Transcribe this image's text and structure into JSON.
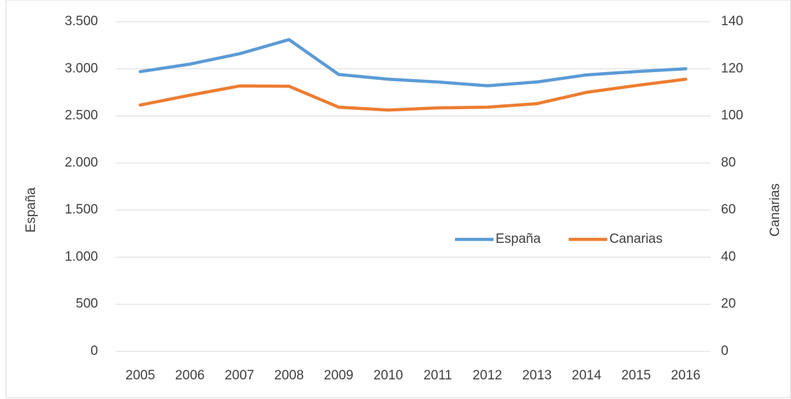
{
  "chart_data": {
    "type": "line",
    "categories": [
      "2005",
      "2006",
      "2007",
      "2008",
      "2009",
      "2010",
      "2011",
      "2012",
      "2013",
      "2014",
      "2015",
      "2016"
    ],
    "series": [
      {
        "name": "España",
        "color": "#5b9bd5",
        "values": [
          2970,
          3050,
          3160,
          3310,
          2940,
          2890,
          2860,
          2820,
          2860,
          2935,
          2970,
          3000
        ]
      },
      {
        "name": "Canarias",
        "color": "#ed7d31",
        "axis": "y2",
        "values": [
          104.6,
          108.8,
          112.7,
          112.6,
          103.7,
          102.5,
          103.4,
          103.7,
          105.2,
          110.0,
          112.9,
          115.6
        ]
      }
    ],
    "ylabel": "España",
    "y2label": "Canarias",
    "ylim": [
      0,
      3500
    ],
    "yticks": [
      0,
      500,
      {
        "value": 1000,
        "label": "1.000"
      },
      {
        "value": 1500,
        "label": "1.500"
      },
      {
        "value": 2000,
        "label": "2.000"
      },
      {
        "value": 2500,
        "label": "2.500"
      },
      {
        "value": 3000,
        "label": "3.000"
      },
      {
        "value": 3500,
        "label": "3.500"
      }
    ],
    "y2lim": [
      0,
      140
    ],
    "y2ticks": [
      0,
      20,
      40,
      60,
      80,
      100,
      120,
      140
    ],
    "grid": true
  }
}
